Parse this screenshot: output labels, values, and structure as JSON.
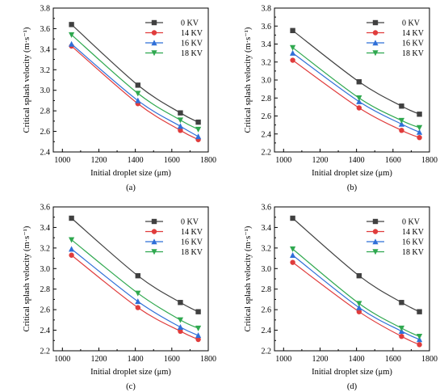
{
  "chart_data": [
    {
      "panel": "(a)",
      "type": "line",
      "xlabel": "Initial droplet size (μm)",
      "ylabel": "Critical splash velocity (m·s⁻¹)",
      "xlim": [
        950,
        1800
      ],
      "ylim": [
        2.4,
        3.8
      ],
      "xticks": [
        1000,
        1200,
        1400,
        1600,
        1800
      ],
      "yticks": [
        2.4,
        2.6,
        2.8,
        3.0,
        3.2,
        3.4,
        3.6,
        3.8
      ],
      "legend_position": "top-right",
      "x": [
        1050,
        1414,
        1647,
        1745
      ],
      "series": [
        {
          "name": "0 KV",
          "color": "#404040",
          "marker": "square",
          "values": [
            3.64,
            3.05,
            2.78,
            2.69
          ]
        },
        {
          "name": "14 KV",
          "color": "#e03c3c",
          "marker": "circle",
          "values": [
            3.43,
            2.87,
            2.61,
            2.52
          ]
        },
        {
          "name": "16 KV",
          "color": "#2f6fd8",
          "marker": "triangle-up",
          "values": [
            3.45,
            2.9,
            2.65,
            2.55
          ]
        },
        {
          "name": "18 KV",
          "color": "#2fa84f",
          "marker": "triangle-down",
          "values": [
            3.54,
            2.97,
            2.71,
            2.62
          ]
        }
      ]
    },
    {
      "panel": "(b)",
      "type": "line",
      "xlabel": "Initial droplet size (μm)",
      "ylabel": "Critical splash velocity (m·s⁻¹)",
      "xlim": [
        950,
        1800
      ],
      "ylim": [
        2.2,
        3.8
      ],
      "xticks": [
        1000,
        1200,
        1400,
        1600,
        1800
      ],
      "yticks": [
        2.2,
        2.4,
        2.6,
        2.8,
        3.0,
        3.2,
        3.4,
        3.6,
        3.8
      ],
      "legend_position": "top-right",
      "x": [
        1050,
        1414,
        1647,
        1745
      ],
      "series": [
        {
          "name": "0 KV",
          "color": "#404040",
          "marker": "square",
          "values": [
            3.55,
            2.98,
            2.71,
            2.62
          ]
        },
        {
          "name": "14 KV",
          "color": "#e03c3c",
          "marker": "circle",
          "values": [
            3.22,
            2.69,
            2.44,
            2.36
          ]
        },
        {
          "name": "16 KV",
          "color": "#2f6fd8",
          "marker": "triangle-up",
          "values": [
            3.3,
            2.76,
            2.51,
            2.42
          ]
        },
        {
          "name": "18 KV",
          "color": "#2fa84f",
          "marker": "triangle-down",
          "values": [
            3.36,
            2.8,
            2.55,
            2.47
          ]
        }
      ]
    },
    {
      "panel": "(c)",
      "type": "line",
      "xlabel": "Initial droplet size (μm)",
      "ylabel": "Critical splash velocity (m·s⁻¹)",
      "xlim": [
        950,
        1800
      ],
      "ylim": [
        2.2,
        3.6
      ],
      "xticks": [
        1000,
        1200,
        1400,
        1600,
        1800
      ],
      "yticks": [
        2.2,
        2.4,
        2.6,
        2.8,
        3.0,
        3.2,
        3.4,
        3.6
      ],
      "legend_position": "top-right",
      "x": [
        1050,
        1414,
        1647,
        1745
      ],
      "series": [
        {
          "name": "0 KV",
          "color": "#404040",
          "marker": "square",
          "values": [
            3.49,
            2.93,
            2.67,
            2.58
          ]
        },
        {
          "name": "14 KV",
          "color": "#e03c3c",
          "marker": "circle",
          "values": [
            3.13,
            2.62,
            2.39,
            2.31
          ]
        },
        {
          "name": "16 KV",
          "color": "#2f6fd8",
          "marker": "triangle-up",
          "values": [
            3.19,
            2.68,
            2.43,
            2.35
          ]
        },
        {
          "name": "18 KV",
          "color": "#2fa84f",
          "marker": "triangle-down",
          "values": [
            3.28,
            2.76,
            2.5,
            2.42
          ]
        }
      ]
    },
    {
      "panel": "(d)",
      "type": "line",
      "xlabel": "Initial droplet size (μm)",
      "ylabel": "Critical splash velocity (m·s⁻¹)",
      "xlim": [
        950,
        1800
      ],
      "ylim": [
        2.2,
        3.6
      ],
      "xticks": [
        1000,
        1200,
        1400,
        1600,
        1800
      ],
      "yticks": [
        2.2,
        2.4,
        2.6,
        2.8,
        3.0,
        3.2,
        3.4,
        3.6
      ],
      "legend_position": "top-right",
      "x": [
        1050,
        1414,
        1647,
        1745
      ],
      "series": [
        {
          "name": "0 KV",
          "color": "#404040",
          "marker": "square",
          "values": [
            3.49,
            2.93,
            2.67,
            2.58
          ]
        },
        {
          "name": "14 KV",
          "color": "#e03c3c",
          "marker": "circle",
          "values": [
            3.06,
            2.58,
            2.34,
            2.26
          ]
        },
        {
          "name": "16 KV",
          "color": "#2f6fd8",
          "marker": "triangle-up",
          "values": [
            3.13,
            2.62,
            2.39,
            2.31
          ]
        },
        {
          "name": "18 KV",
          "color": "#2fa84f",
          "marker": "triangle-down",
          "values": [
            3.19,
            2.66,
            2.42,
            2.34
          ]
        }
      ]
    }
  ]
}
